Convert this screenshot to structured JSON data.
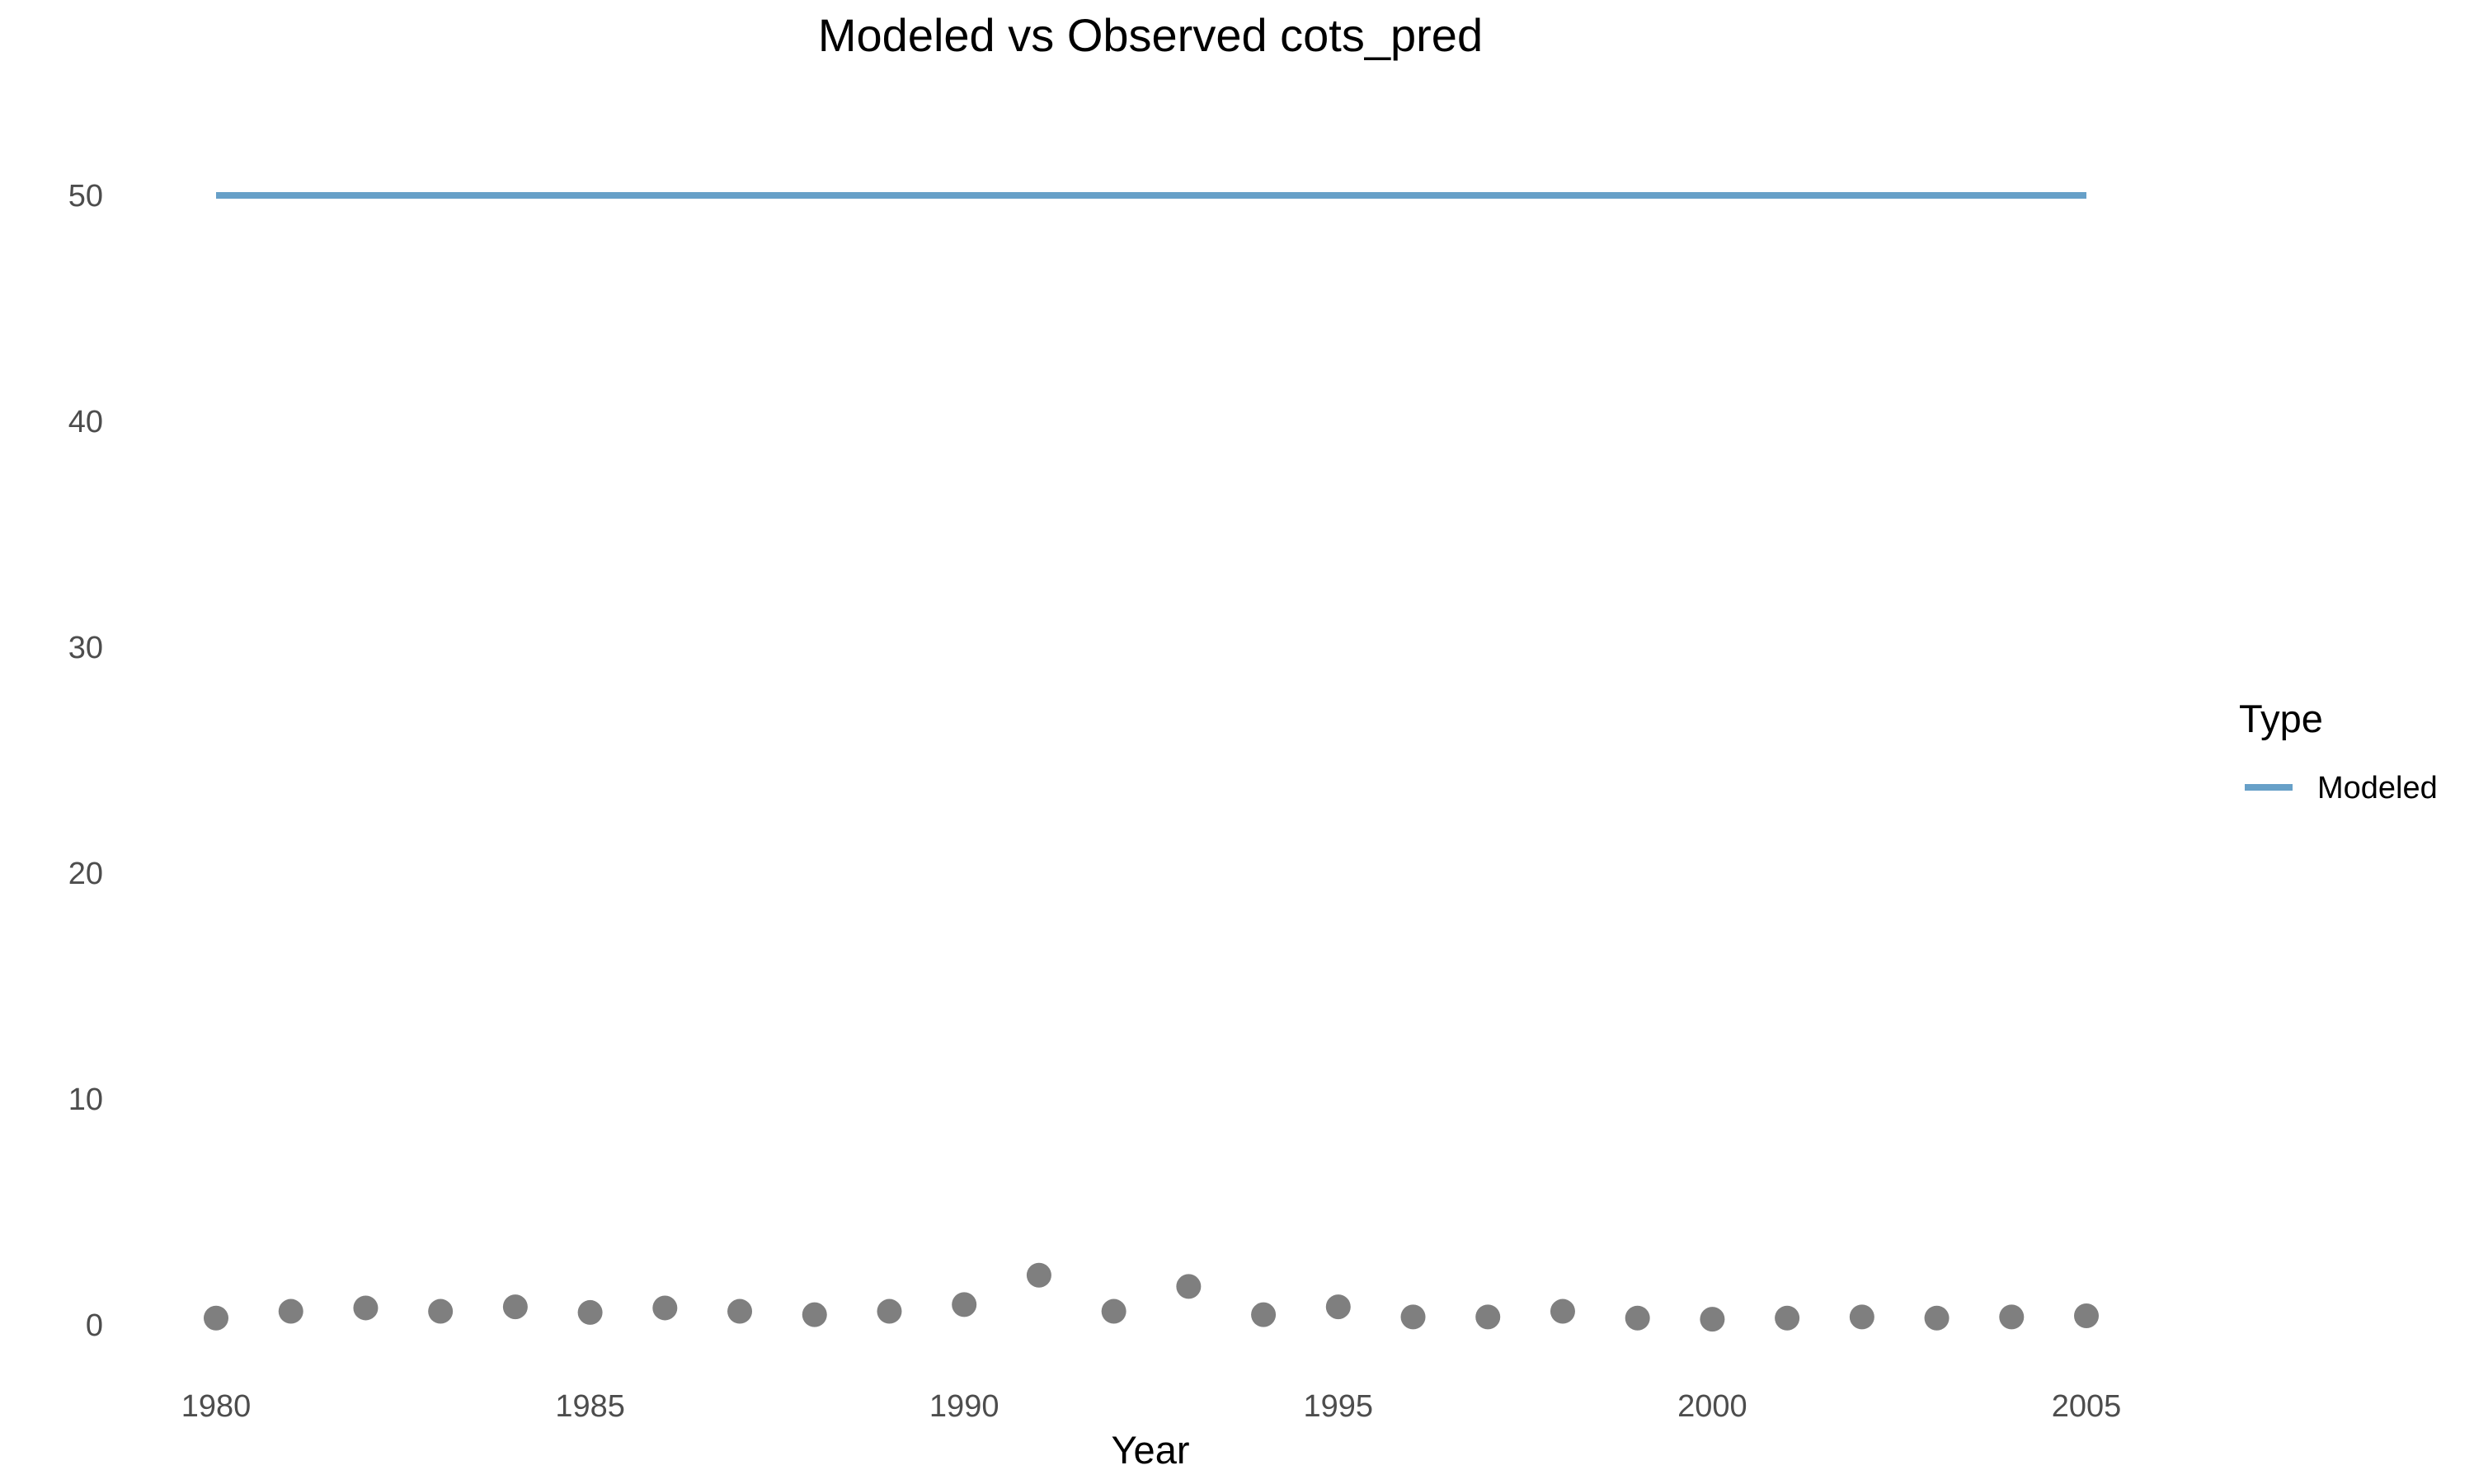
{
  "chart_data": {
    "type": "line",
    "title": "Modeled vs Observed cots_pred",
    "xlabel": "Year",
    "ylabel": "",
    "xlim": [
      1980,
      2005
    ],
    "ylim": [
      0,
      50
    ],
    "x_ticks": [
      "1980",
      "1985",
      "1990",
      "1995",
      "2000",
      "2005"
    ],
    "y_ticks": [
      "0",
      "10",
      "20",
      "30",
      "40",
      "50"
    ],
    "grid": false,
    "legend": {
      "title": "Type",
      "position": "right",
      "entries": [
        {
          "label": "Modeled",
          "color": "#67a0c8"
        }
      ]
    },
    "series": [
      {
        "name": "Modeled",
        "kind": "line",
        "color": "#67a0c8",
        "x": [
          1980,
          1981,
          1982,
          1983,
          1984,
          1985,
          1986,
          1987,
          1988,
          1989,
          1990,
          1991,
          1992,
          1993,
          1994,
          1995,
          1996,
          1997,
          1998,
          1999,
          2000,
          2001,
          2002,
          2003,
          2004,
          2005
        ],
        "y": [
          50,
          50,
          50,
          50,
          50,
          50,
          50,
          50,
          50,
          50,
          50,
          50,
          50,
          50,
          50,
          50,
          50,
          50,
          50,
          50,
          50,
          50,
          50,
          50,
          50,
          50
        ]
      },
      {
        "kind": "points",
        "color": "#7f7f7f",
        "x": [
          1980,
          1981,
          1982,
          1983,
          1984,
          1985,
          1986,
          1987,
          1988,
          1989,
          1990,
          1991,
          1992,
          1993,
          1994,
          1995,
          1996,
          1997,
          1998,
          1999,
          2000,
          2001,
          2002,
          2003,
          2004,
          2005
        ],
        "y": [
          0.3,
          0.6,
          0.75,
          0.6,
          0.8,
          0.55,
          0.75,
          0.6,
          0.45,
          0.6,
          0.9,
          2.2,
          0.6,
          1.7,
          0.45,
          0.8,
          0.35,
          0.35,
          0.6,
          0.3,
          0.25,
          0.3,
          0.35,
          0.3,
          0.35,
          0.4
        ]
      }
    ]
  }
}
